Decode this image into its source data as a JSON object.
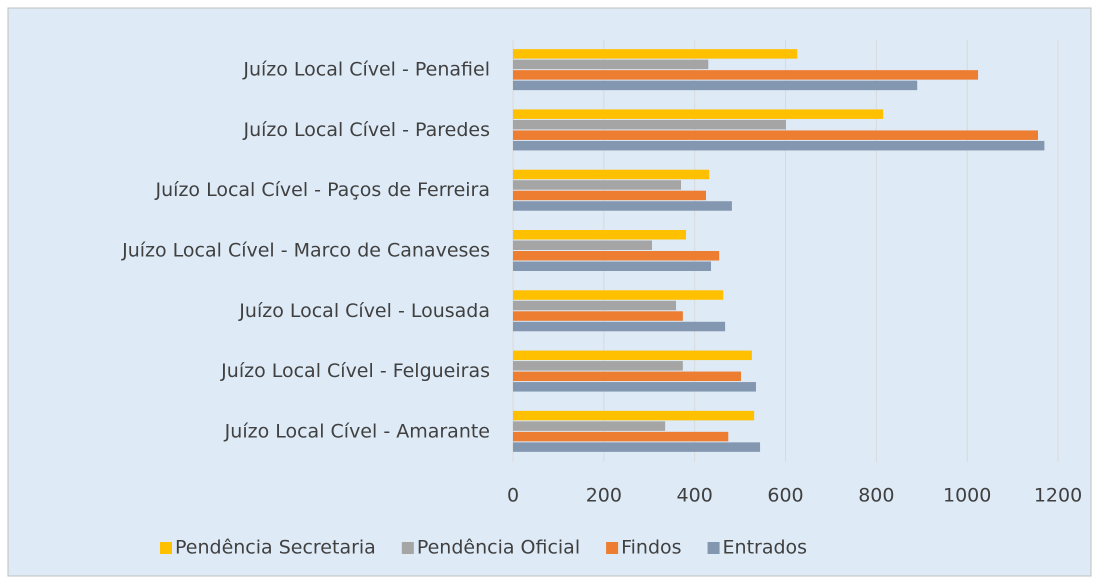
{
  "chart_data": {
    "type": "hbar",
    "categories": [
      "Juízo Local Cível - Penafiel",
      "Juízo Local Cível - Paredes",
      "Juízo Local Cível - Paços de Ferreira",
      "Juízo Local Cível - Marco de Canaveses",
      "Juízo Local Cível - Lousada",
      "Juízo Local Cível - Felgueiras",
      "Juízo Local Cível - Amarante"
    ],
    "series": [
      {
        "name": "Pendência Secretaria",
        "color": "#ffc000",
        "values": [
          626,
          815,
          432,
          381,
          463,
          526,
          531
        ]
      },
      {
        "name": "Pendência Oficial",
        "color": "#a5a5a5",
        "values": [
          430,
          601,
          370,
          306,
          359,
          374,
          335
        ]
      },
      {
        "name": "Findos",
        "color": "#ed7d31",
        "values": [
          1024,
          1156,
          425,
          454,
          374,
          502,
          474
        ]
      },
      {
        "name": "Entrados",
        "color": "#8497b0",
        "values": [
          890,
          1170,
          482,
          436,
          467,
          535,
          544
        ]
      }
    ],
    "xlim": [
      0,
      1200
    ],
    "xticks": [
      0,
      200,
      400,
      600,
      800,
      1000,
      1200
    ],
    "grid": true,
    "legend": "bottom"
  }
}
